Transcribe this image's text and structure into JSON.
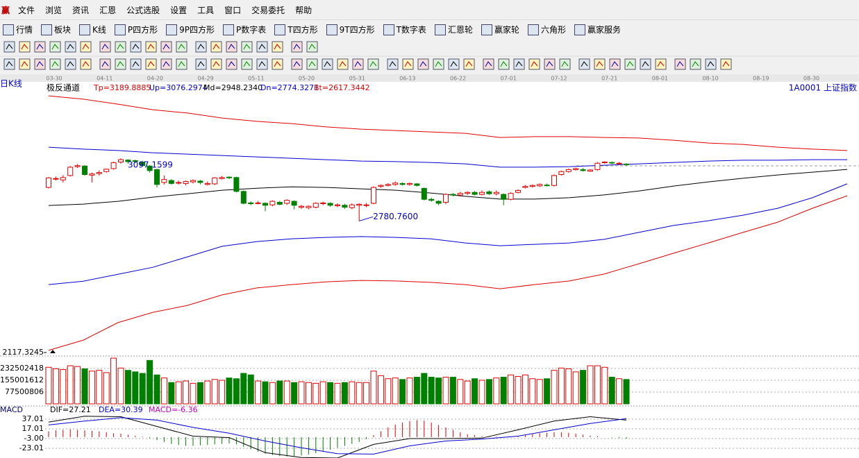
{
  "menu": [
    "赢",
    "文件",
    "浏览",
    "资讯",
    "汇恩",
    "公式选股",
    "设置",
    "工具",
    "窗口",
    "交易委托",
    "帮助"
  ],
  "toolbar": [
    "行情",
    "板块",
    "K线",
    "P四方形",
    "9P四方形",
    "P数字表",
    "T四方形",
    "9T四方形",
    "T数字表",
    "汇恩轮",
    "赢家轮",
    "六角形",
    "赢家服务"
  ],
  "chart_data": [
    {
      "type": "candlestick",
      "period": "日K线",
      "title": "极反通道",
      "symbol": "1A0001 上证指数",
      "up_color": "#e00000",
      "down_color": "#008000",
      "x_labels": [
        "03-30",
        "04-11",
        "04-20",
        "04-29",
        "05-11",
        "05-20",
        "05-31",
        "06-13",
        "06-22",
        "07-01",
        "07-12",
        "07-21",
        "08-01",
        "08-10",
        "08-19",
        "08-30"
      ],
      "open": [
        2950,
        2992,
        2988,
        3010,
        3055,
        3058,
        3012,
        3020,
        3030,
        3045,
        3078,
        3088,
        3085,
        3078,
        3058,
        3040,
        2975,
        2985,
        2972,
        2970,
        2978,
        2982,
        2965,
        2968,
        2995,
        3002,
        3000,
        2930,
        2872,
        2870,
        2870,
        2862,
        2875,
        2870,
        2880,
        2850,
        2848,
        2850,
        2868,
        2870,
        2858,
        2860,
        2848,
        2860,
        2860,
        2870,
        2955,
        2960,
        2965,
        2970,
        2965,
        2968,
        2945,
        2890,
        2880,
        2875,
        2915,
        2912,
        2920,
        2925,
        2915,
        2928,
        2918,
        2915,
        2890,
        2925,
        2950,
        2955,
        2958,
        2962,
        2960,
        3015,
        3030,
        3040,
        3040,
        3032,
        3040,
        3075,
        3076,
        3070,
        3068
      ],
      "high": [
        3002,
        3005,
        3012,
        3058,
        3068,
        3062,
        3025,
        3035,
        3045,
        3080,
        3097.1599,
        3092,
        3090,
        3085,
        3062,
        3045,
        3010,
        2992,
        2985,
        2985,
        2990,
        2988,
        2980,
        3002,
        3008,
        3006,
        3004,
        2935,
        2880,
        2882,
        2875,
        2885,
        2882,
        2890,
        2885,
        2862,
        2860,
        2875,
        2878,
        2875,
        2870,
        2868,
        2870,
        2870,
        2872,
        2955,
        2965,
        2972,
        2980,
        2975,
        2975,
        2972,
        2950,
        2898,
        2885,
        2920,
        2922,
        2928,
        2930,
        2932,
        2935,
        2935,
        2935,
        2920,
        2925,
        2940,
        2962,
        2965,
        2970,
        2970,
        3015,
        3035,
        3045,
        3050,
        3048,
        3042,
        3078,
        3082,
        3080,
        3078,
        3072
      ],
      "low": [
        2945,
        2985,
        2975,
        3005,
        3048,
        3010,
        2975,
        3010,
        3025,
        3040,
        3070,
        3070,
        3072,
        3055,
        3025,
        2950,
        2965,
        2965,
        2965,
        2960,
        2970,
        2965,
        2960,
        2962,
        2990,
        2992,
        2925,
        2865,
        2860,
        2865,
        2830,
        2855,
        2860,
        2862,
        2840,
        2842,
        2840,
        2845,
        2860,
        2852,
        2850,
        2842,
        2840,
        2780.76,
        2850,
        2865,
        2948,
        2955,
        2958,
        2960,
        2958,
        2955,
        2885,
        2878,
        2860,
        2865,
        2905,
        2905,
        2912,
        2910,
        2910,
        2912,
        2910,
        2860,
        2885,
        2920,
        2945,
        2950,
        2952,
        2955,
        2955,
        3010,
        3025,
        3035,
        3030,
        3028,
        3035,
        3070,
        3068,
        3065,
        3060
      ],
      "close": [
        2998,
        2995,
        3000,
        3052,
        3060,
        3015,
        3018,
        3025,
        3042,
        3075,
        3090,
        3080,
        3082,
        3060,
        3035,
        2965,
        2990,
        2970,
        2975,
        2980,
        2985,
        2975,
        2970,
        2998,
        3000,
        3000,
        2930,
        2870,
        2868,
        2872,
        2860,
        2880,
        2865,
        2885,
        2860,
        2855,
        2855,
        2870,
        2872,
        2860,
        2862,
        2850,
        2862,
        2865,
        2862,
        2950,
        2960,
        2965,
        2972,
        2965,
        2970,
        2960,
        2890,
        2885,
        2870,
        2915,
        2912,
        2920,
        2925,
        2915,
        2925,
        2918,
        2925,
        2890,
        2920,
        2935,
        2955,
        2960,
        2965,
        2960,
        3010,
        3030,
        3040,
        3045,
        3035,
        3038,
        3072,
        3078,
        3075,
        3072,
        3065
      ],
      "annotations": [
        "3097.1599",
        "2780.7600"
      ],
      "series": [
        {
          "name": "Tp=3189.8885",
          "color": "#e00000",
          "values": [
            3412,
            3395,
            3370,
            3342,
            3325,
            3300,
            3283,
            3272,
            3255,
            3244,
            3237,
            3230,
            3223,
            3202,
            3206,
            3206,
            3202,
            3199,
            3188,
            3174,
            3167,
            3153,
            3143,
            3136
          ]
        },
        {
          "name": "Up=3076.2974",
          "color": "#0000d0",
          "values": [
            3153,
            3143,
            3136,
            3125,
            3118,
            3111,
            3104,
            3097,
            3090,
            3083,
            3080,
            3076,
            3069,
            3052,
            3052,
            3055,
            3062,
            3069,
            3076,
            3083,
            3087,
            3087,
            3090,
            3090
          ]
        },
        {
          "name": "Md=2948.2340",
          "color": "#000000",
          "values": [
            2859,
            2866,
            2880,
            2901,
            2918,
            2936,
            2946,
            2953,
            2950,
            2943,
            2936,
            2922,
            2905,
            2891,
            2891,
            2898,
            2912,
            2932,
            2957,
            2978,
            2996,
            3013,
            3027,
            3041
          ]
        },
        {
          "name": "Dn=2774.3271",
          "color": "#0000d0",
          "values": [
            2460,
            2477,
            2512,
            2547,
            2600,
            2653,
            2677,
            2691,
            2698,
            2702,
            2698,
            2691,
            2670,
            2656,
            2663,
            2670,
            2688,
            2723,
            2758,
            2782,
            2810,
            2845,
            2898,
            2968
          ]
        },
        {
          "name": "Bt=2617.3442",
          "color": "#e00000",
          "values": [
            2128,
            2180,
            2268,
            2320,
            2355,
            2408,
            2443,
            2460,
            2474,
            2481,
            2478,
            2471,
            2460,
            2439,
            2460,
            2478,
            2513,
            2565,
            2618,
            2670,
            2723,
            2775,
            2845,
            2908
          ]
        }
      ],
      "ylim": [
        2117.3245,
        3475.3245
      ],
      "yticks": [
        2117.3245
      ]
    },
    {
      "type": "volume",
      "values": [
        240000000,
        230000000,
        225000000,
        250000000,
        245000000,
        230000000,
        215000000,
        220000000,
        205000000,
        300000000,
        235000000,
        220000000,
        210000000,
        200000000,
        285000000,
        190000000,
        170000000,
        140000000,
        145000000,
        150000000,
        135000000,
        140000000,
        150000000,
        160000000,
        155000000,
        170000000,
        165000000,
        200000000,
        190000000,
        150000000,
        145000000,
        140000000,
        150000000,
        150000000,
        140000000,
        145000000,
        140000000,
        135000000,
        145000000,
        140000000,
        135000000,
        140000000,
        145000000,
        140000000,
        140000000,
        215000000,
        185000000,
        165000000,
        170000000,
        160000000,
        170000000,
        175000000,
        200000000,
        175000000,
        170000000,
        175000000,
        175000000,
        160000000,
        150000000,
        165000000,
        155000000,
        160000000,
        170000000,
        175000000,
        190000000,
        180000000,
        190000000,
        165000000,
        160000000,
        165000000,
        220000000,
        235000000,
        230000000,
        210000000,
        220000000,
        250000000,
        250000000,
        240000000,
        175000000,
        165000000,
        160000000
      ],
      "ylim": [
        0,
        314000000
      ],
      "yticks": [
        77500806,
        155001612,
        232502418
      ],
      "grid": true
    },
    {
      "type": "macd",
      "title": "MACD",
      "series": [
        {
          "name": "DIF=27.21",
          "color": "#000000",
          "values": [
            31,
            43,
            42,
            22,
            2,
            -1,
            -32,
            -42,
            -43,
            -15,
            -3,
            -3,
            -2,
            15,
            33,
            42,
            35
          ]
        },
        {
          "name": "DEA=30.39",
          "color": "#0000d0",
          "values": [
            25,
            33,
            40,
            35,
            20,
            8,
            -8,
            -22,
            -34,
            -35,
            -18,
            -8,
            -4,
            2,
            15,
            28,
            38
          ]
        },
        {
          "name": "MACD=-6.36",
          "color": "#c000c0",
          "values": [
            12,
            14,
            15,
            16,
            15,
            14,
            13,
            12,
            10,
            8,
            7,
            5,
            3,
            1,
            -2,
            -6,
            -10,
            -14,
            -16,
            -18,
            -18,
            -17,
            -16,
            -15,
            -14,
            -13,
            -15,
            -20,
            -25,
            -30,
            -34,
            -37,
            -39,
            -40,
            -40,
            -38,
            -36,
            -33,
            -30,
            -26,
            -22,
            -18,
            -14,
            -10,
            -4,
            4,
            12,
            20,
            26,
            30,
            33,
            35,
            34,
            30,
            25,
            20,
            15,
            10,
            6,
            4,
            2,
            1,
            1,
            0,
            1,
            2,
            4,
            6,
            8,
            9,
            10,
            10,
            9,
            7,
            5,
            3,
            2,
            0,
            -1,
            -2,
            -3
          ]
        }
      ],
      "ylim": [
        -43,
        57
      ],
      "yticks": [
        37.01,
        17.01,
        {
          "value": -3,
          "label": "-3.00"
        },
        -23.01
      ],
      "grid": true
    }
  ]
}
